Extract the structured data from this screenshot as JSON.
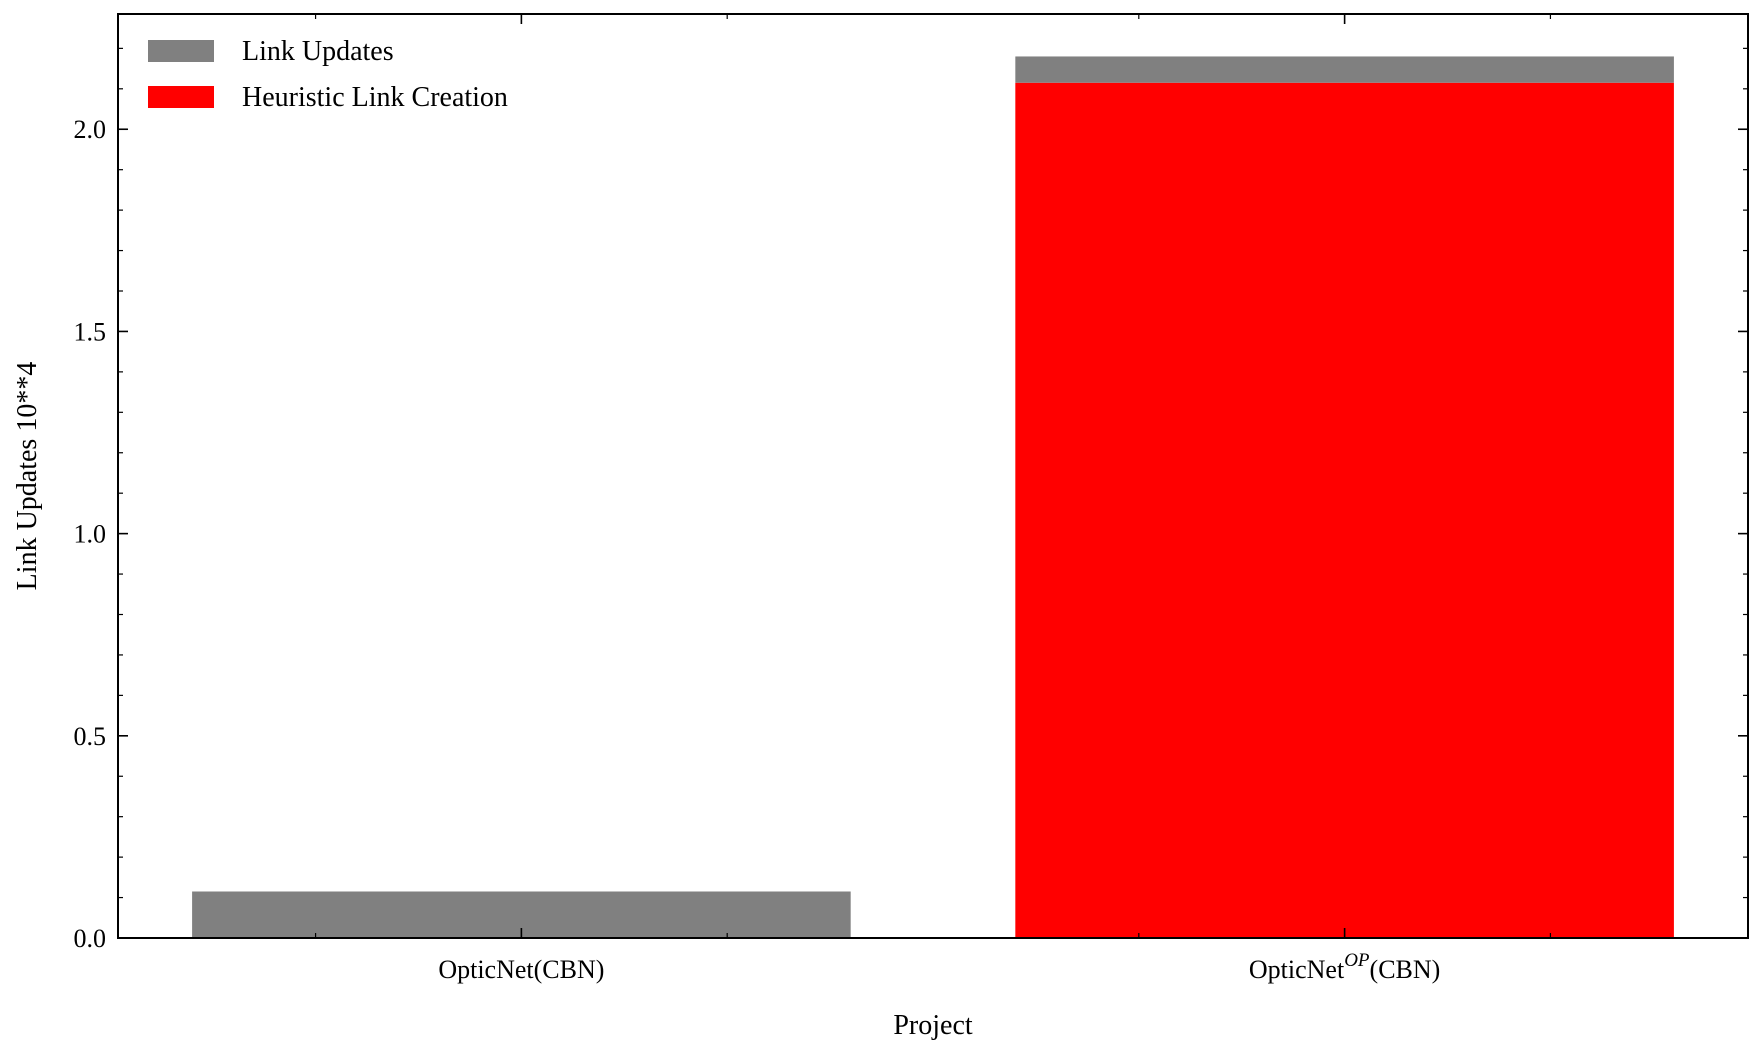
{
  "chart_data": {
    "type": "bar",
    "stacked": true,
    "categories": [
      {
        "base": "OpticNet",
        "sup": "",
        "suffix": "(CBN)"
      },
      {
        "base": "OpticNet",
        "sup": "OP",
        "suffix": "(CBN)"
      }
    ],
    "series": [
      {
        "name": "Heuristic Link Creation",
        "color": "#ff0000",
        "values": [
          0,
          2.115
        ]
      },
      {
        "name": "Link Updates",
        "color": "#808080",
        "values": [
          0.115,
          0.065
        ]
      }
    ],
    "legend": [
      "Link Updates",
      "Heuristic Link Creation"
    ],
    "legend_position": "top-left",
    "xlabel": "Project",
    "ylabel": "Link Updates 10**4",
    "ylim": [
      0,
      2.285
    ],
    "yticks": [
      0.0,
      0.5,
      1.0,
      1.5,
      2.0
    ],
    "ytick_labels": [
      "0.0",
      "0.5",
      "1.0",
      "1.5",
      "2.0"
    ],
    "y_minor_step": 0.1,
    "grid": false
  }
}
